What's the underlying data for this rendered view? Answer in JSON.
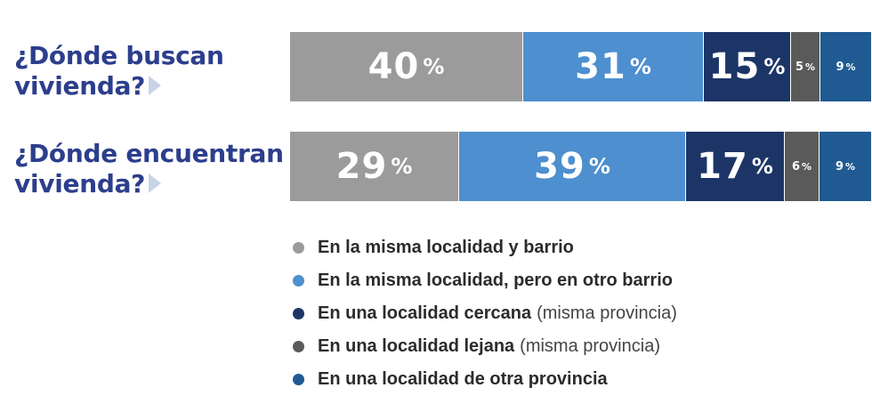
{
  "chart_data": {
    "type": "bar",
    "stacked": true,
    "orientation": "horizontal",
    "categories": [
      "¿Dónde buscan vivienda?",
      "¿Dónde encuentran vivienda?"
    ],
    "category_lines": [
      [
        "¿Dónde buscan",
        "vivienda?"
      ],
      [
        "¿Dónde encuentran",
        "vivienda?"
      ]
    ],
    "series": [
      {
        "name": "En la misma localidad y barrio",
        "note": "",
        "color": "#9b9b9b",
        "values": [
          40,
          29
        ]
      },
      {
        "name": "En la misma localidad, pero en otro barrio",
        "note": "",
        "color": "#4d8fcf",
        "values": [
          31,
          39
        ]
      },
      {
        "name": "En una localidad cercana",
        "note": "(misma provincia)",
        "color": "#1c3566",
        "values": [
          15,
          17
        ]
      },
      {
        "name": "En una localidad lejana",
        "note": "(misma provincia)",
        "color": "#5a5a5a",
        "values": [
          5,
          6
        ]
      },
      {
        "name": "En una localidad de otra provincia",
        "note": "",
        "color": "#1f5a92",
        "values": [
          9,
          9
        ]
      }
    ],
    "value_suffix": "%",
    "legend_position": "bottom"
  }
}
